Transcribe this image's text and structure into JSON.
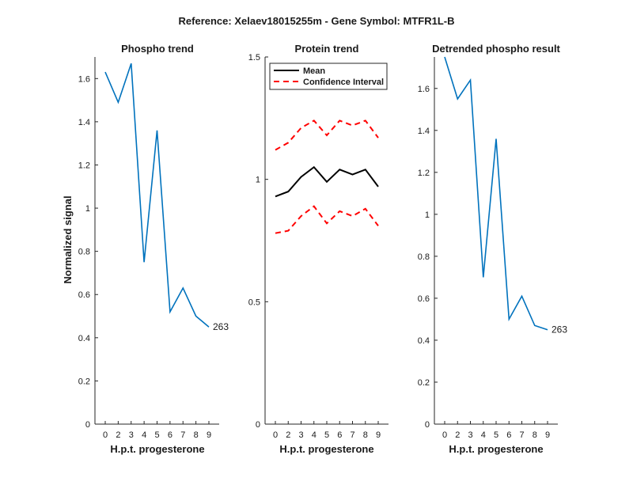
{
  "figure_title": "Reference:  Xelaev18015255m - Gene Symbol:  MTFR1L-B",
  "chart_data": [
    {
      "type": "line",
      "title": "Phospho trend",
      "xlabel": "H.p.t. progesterone",
      "ylabel": "Normalized signal",
      "x_ticks": [
        "0",
        "2",
        "3",
        "4",
        "5",
        "6",
        "7",
        "8",
        "9"
      ],
      "y_ticks": [
        "0",
        "0.2",
        "0.4",
        "0.6",
        "0.8",
        "1",
        "1.2",
        "1.4",
        "1.6"
      ],
      "ylim": [
        0,
        1.7
      ],
      "series": [
        {
          "color": "#0072BD",
          "dash": "",
          "values": [
            1.63,
            1.49,
            1.67,
            0.75,
            1.36,
            0.52,
            0.63,
            0.5,
            0.45
          ]
        }
      ],
      "annotation": "263"
    },
    {
      "type": "line",
      "title": "Protein trend",
      "xlabel": "H.p.t. progesterone",
      "ylabel": "",
      "x_ticks": [
        "0",
        "2",
        "3",
        "4",
        "5",
        "6",
        "7",
        "8",
        "9"
      ],
      "y_ticks": [
        "0",
        "0.5",
        "1",
        "1.5"
      ],
      "ylim": [
        0,
        1.5
      ],
      "series": [
        {
          "name": "Mean",
          "color": "#000000",
          "dash": "",
          "values": [
            0.93,
            0.95,
            1.01,
            1.05,
            0.99,
            1.04,
            1.02,
            1.04,
            0.97
          ]
        },
        {
          "name": "Confidence Interval",
          "color": "#FF0000",
          "dash": "7,5",
          "values": [
            1.12,
            1.15,
            1.21,
            1.24,
            1.18,
            1.24,
            1.22,
            1.24,
            1.17
          ]
        },
        {
          "color": "#FF0000",
          "dash": "7,5",
          "values": [
            0.78,
            0.79,
            0.85,
            0.89,
            0.82,
            0.87,
            0.85,
            0.88,
            0.81
          ]
        }
      ],
      "legend": {
        "position": "top-left",
        "items": [
          {
            "label": "Mean",
            "color": "#000000",
            "dash": ""
          },
          {
            "label": "Confidence Interval",
            "color": "#FF0000",
            "dash": "7,5"
          }
        ]
      }
    },
    {
      "type": "line",
      "title": "Detrended phospho result",
      "xlabel": "H.p.t. progesterone",
      "ylabel": "",
      "x_ticks": [
        "0",
        "2",
        "3",
        "4",
        "5",
        "6",
        "7",
        "8",
        "9"
      ],
      "y_ticks": [
        "0",
        "0.2",
        "0.4",
        "0.6",
        "0.8",
        "1",
        "1.2",
        "1.4",
        "1.6"
      ],
      "ylim": [
        0,
        1.75
      ],
      "series": [
        {
          "color": "#0072BD",
          "dash": "",
          "values": [
            1.75,
            1.55,
            1.64,
            0.7,
            1.36,
            0.5,
            0.61,
            0.47,
            0.45
          ]
        }
      ],
      "annotation": "263"
    }
  ]
}
